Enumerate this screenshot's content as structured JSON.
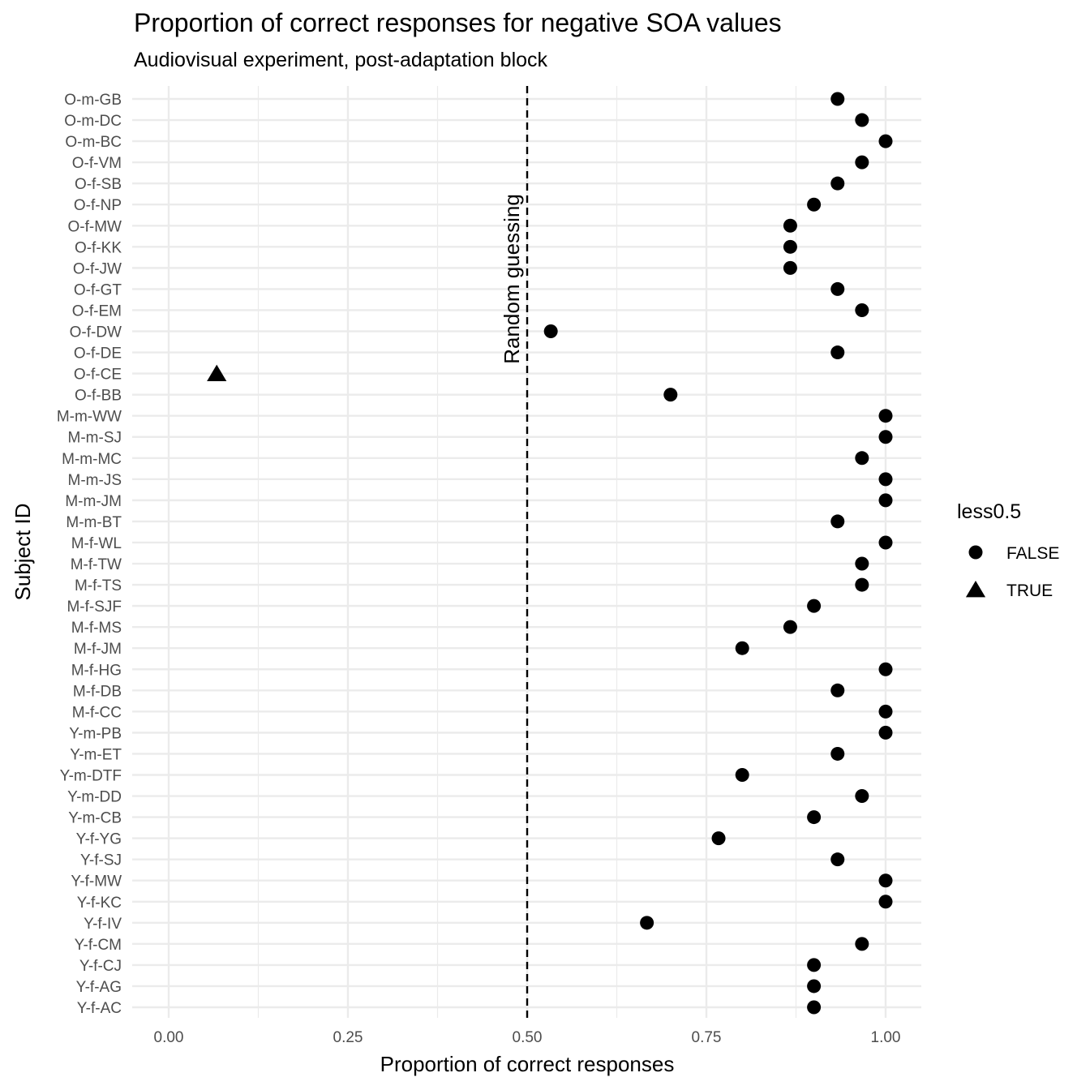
{
  "chart_data": {
    "type": "scatter",
    "title": "Proportion of correct responses for negative SOA values",
    "subtitle": "Audiovisual experiment, post-adaptation block",
    "xlabel": "Proportion of correct responses",
    "ylabel": "Subject ID",
    "xlim": [
      0,
      1
    ],
    "x_ticks": [
      "0.00",
      "0.25",
      "0.50",
      "0.75",
      "1.00"
    ],
    "grid": true,
    "reference_line": {
      "x": 0.5,
      "style": "dashed",
      "label": "Random guessing"
    },
    "legend": {
      "title": "less0.5",
      "placement": "right",
      "entries": [
        {
          "label": "FALSE",
          "shape": "circle"
        },
        {
          "label": "TRUE",
          "shape": "triangle"
        }
      ]
    },
    "categories": [
      "O-m-GB",
      "O-m-DC",
      "O-m-BC",
      "O-f-VM",
      "O-f-SB",
      "O-f-NP",
      "O-f-MW",
      "O-f-KK",
      "O-f-JW",
      "O-f-GT",
      "O-f-EM",
      "O-f-DW",
      "O-f-DE",
      "O-f-CE",
      "O-f-BB",
      "M-m-WW",
      "M-m-SJ",
      "M-m-MC",
      "M-m-JS",
      "M-m-JM",
      "M-m-BT",
      "M-f-WL",
      "M-f-TW",
      "M-f-TS",
      "M-f-SJF",
      "M-f-MS",
      "M-f-JM",
      "M-f-HG",
      "M-f-DB",
      "M-f-CC",
      "Y-m-PB",
      "Y-m-ET",
      "Y-m-DTF",
      "Y-m-DD",
      "Y-m-CB",
      "Y-f-YG",
      "Y-f-SJ",
      "Y-f-MW",
      "Y-f-KC",
      "Y-f-IV",
      "Y-f-CM",
      "Y-f-CJ",
      "Y-f-AG",
      "Y-f-AC"
    ],
    "values": [
      0.933,
      0.967,
      1.0,
      0.967,
      0.933,
      0.9,
      0.867,
      0.867,
      0.867,
      0.933,
      0.967,
      0.533,
      0.933,
      0.067,
      0.7,
      1.0,
      1.0,
      0.967,
      1.0,
      1.0,
      0.933,
      1.0,
      0.967,
      0.967,
      0.9,
      0.867,
      0.8,
      1.0,
      0.933,
      1.0,
      1.0,
      0.933,
      0.8,
      0.967,
      0.9,
      0.767,
      0.933,
      1.0,
      1.0,
      0.667,
      0.967,
      0.9,
      0.9,
      0.9
    ],
    "less0.5": [
      false,
      false,
      false,
      false,
      false,
      false,
      false,
      false,
      false,
      false,
      false,
      false,
      false,
      true,
      false,
      false,
      false,
      false,
      false,
      false,
      false,
      false,
      false,
      false,
      false,
      false,
      false,
      false,
      false,
      false,
      false,
      false,
      false,
      false,
      false,
      false,
      false,
      false,
      false,
      false,
      false,
      false,
      false,
      false
    ]
  }
}
